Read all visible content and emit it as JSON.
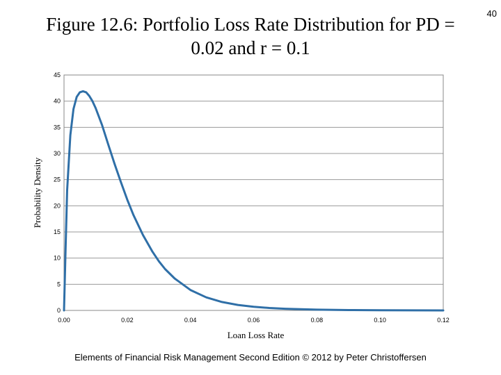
{
  "slide": {
    "page_number": "40",
    "footer": "Elements of Financial Risk Management Second Edition © 2012  by Peter Christoffersen"
  },
  "chart_data": {
    "type": "line",
    "title": "Figure 12.6: Portfolio Loss Rate Distribution for PD = 0.02 and r = 0.1",
    "xlabel": "Loan Loss Rate",
    "ylabel": "Probability Density",
    "xlim": [
      0,
      0.12
    ],
    "ylim": [
      0,
      45
    ],
    "x_ticks": [
      "0.00",
      "0.02",
      "0.04",
      "0.06",
      "0.08",
      "0.10",
      "0.12"
    ],
    "y_ticks": [
      "0",
      "5",
      "10",
      "15",
      "20",
      "25",
      "30",
      "35",
      "40",
      "45"
    ],
    "grid": "horizontal",
    "line_color": "#2f6fa7",
    "series": [
      {
        "x": [
          0.0,
          0.0005,
          0.001,
          0.002,
          0.003,
          0.004,
          0.005,
          0.006,
          0.007,
          0.008,
          0.009,
          0.01,
          0.012,
          0.014,
          0.016,
          0.018,
          0.02,
          0.022,
          0.025,
          0.028,
          0.03,
          0.032,
          0.035,
          0.04,
          0.045,
          0.05,
          0.055,
          0.06,
          0.065,
          0.07,
          0.08,
          0.09,
          0.1,
          0.11,
          0.12
        ],
        "y": [
          0,
          12,
          23,
          33.5,
          38.5,
          40.8,
          41.7,
          41.9,
          41.7,
          41.0,
          40.0,
          38.7,
          35.5,
          31.7,
          28.0,
          24.5,
          21.2,
          18.2,
          14.4,
          11.2,
          9.4,
          7.9,
          6.1,
          3.9,
          2.5,
          1.6,
          1.05,
          0.7,
          0.47,
          0.32,
          0.15,
          0.07,
          0.035,
          0.017,
          0.0
        ]
      }
    ]
  }
}
